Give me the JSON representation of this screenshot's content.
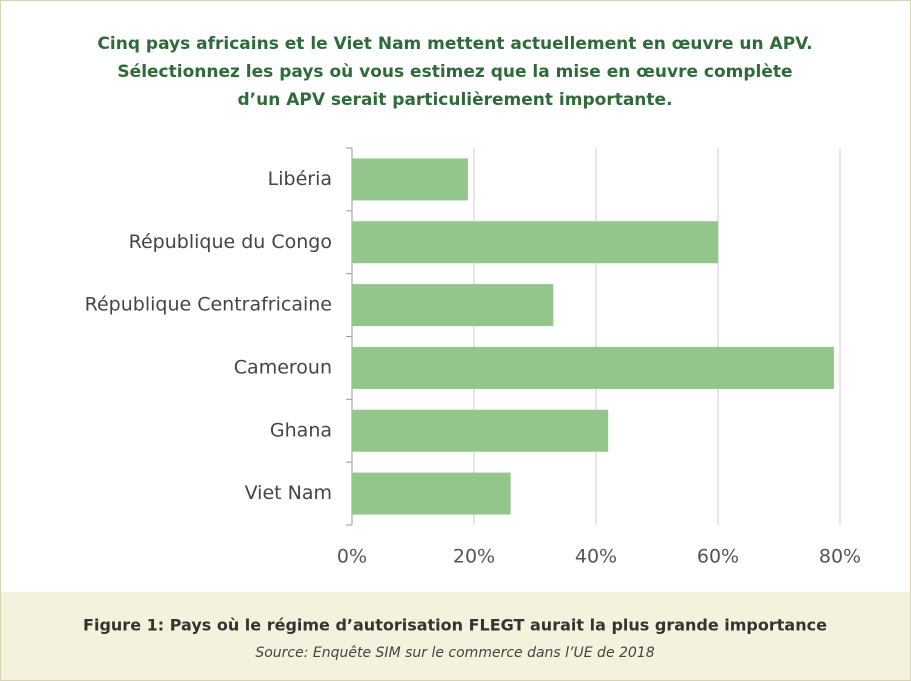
{
  "chart_data": {
    "type": "bar",
    "orientation": "horizontal",
    "title": [
      "Cinq pays africains et le Viet Nam mettent actuellement en œuvre un APV.",
      "Sélectionnez les pays où vous estimez que la mise en œuvre complète",
      "d’un APV serait particulièrement importante."
    ],
    "categories": [
      "Libéria",
      "République du Congo",
      "République Centrafricaine",
      "Cameroun",
      "Ghana",
      "Viet Nam"
    ],
    "values": [
      19,
      60,
      33,
      79,
      42,
      26
    ],
    "color": "#93c68a",
    "xlim": [
      0,
      80
    ],
    "xticks": [
      {
        "value": 0,
        "label": "0%"
      },
      {
        "value": 20,
        "label": "20%"
      },
      {
        "value": 40,
        "label": "40%"
      },
      {
        "value": 60,
        "label": "60%"
      },
      {
        "value": 80,
        "label": "80%"
      }
    ],
    "grid": true,
    "caption": "Figure 1: Pays où le régime d’autorisation FLEGT aurait la plus grande importance",
    "source": "Source: Enquête SIM sur le commerce dans l’UE de 2018"
  }
}
